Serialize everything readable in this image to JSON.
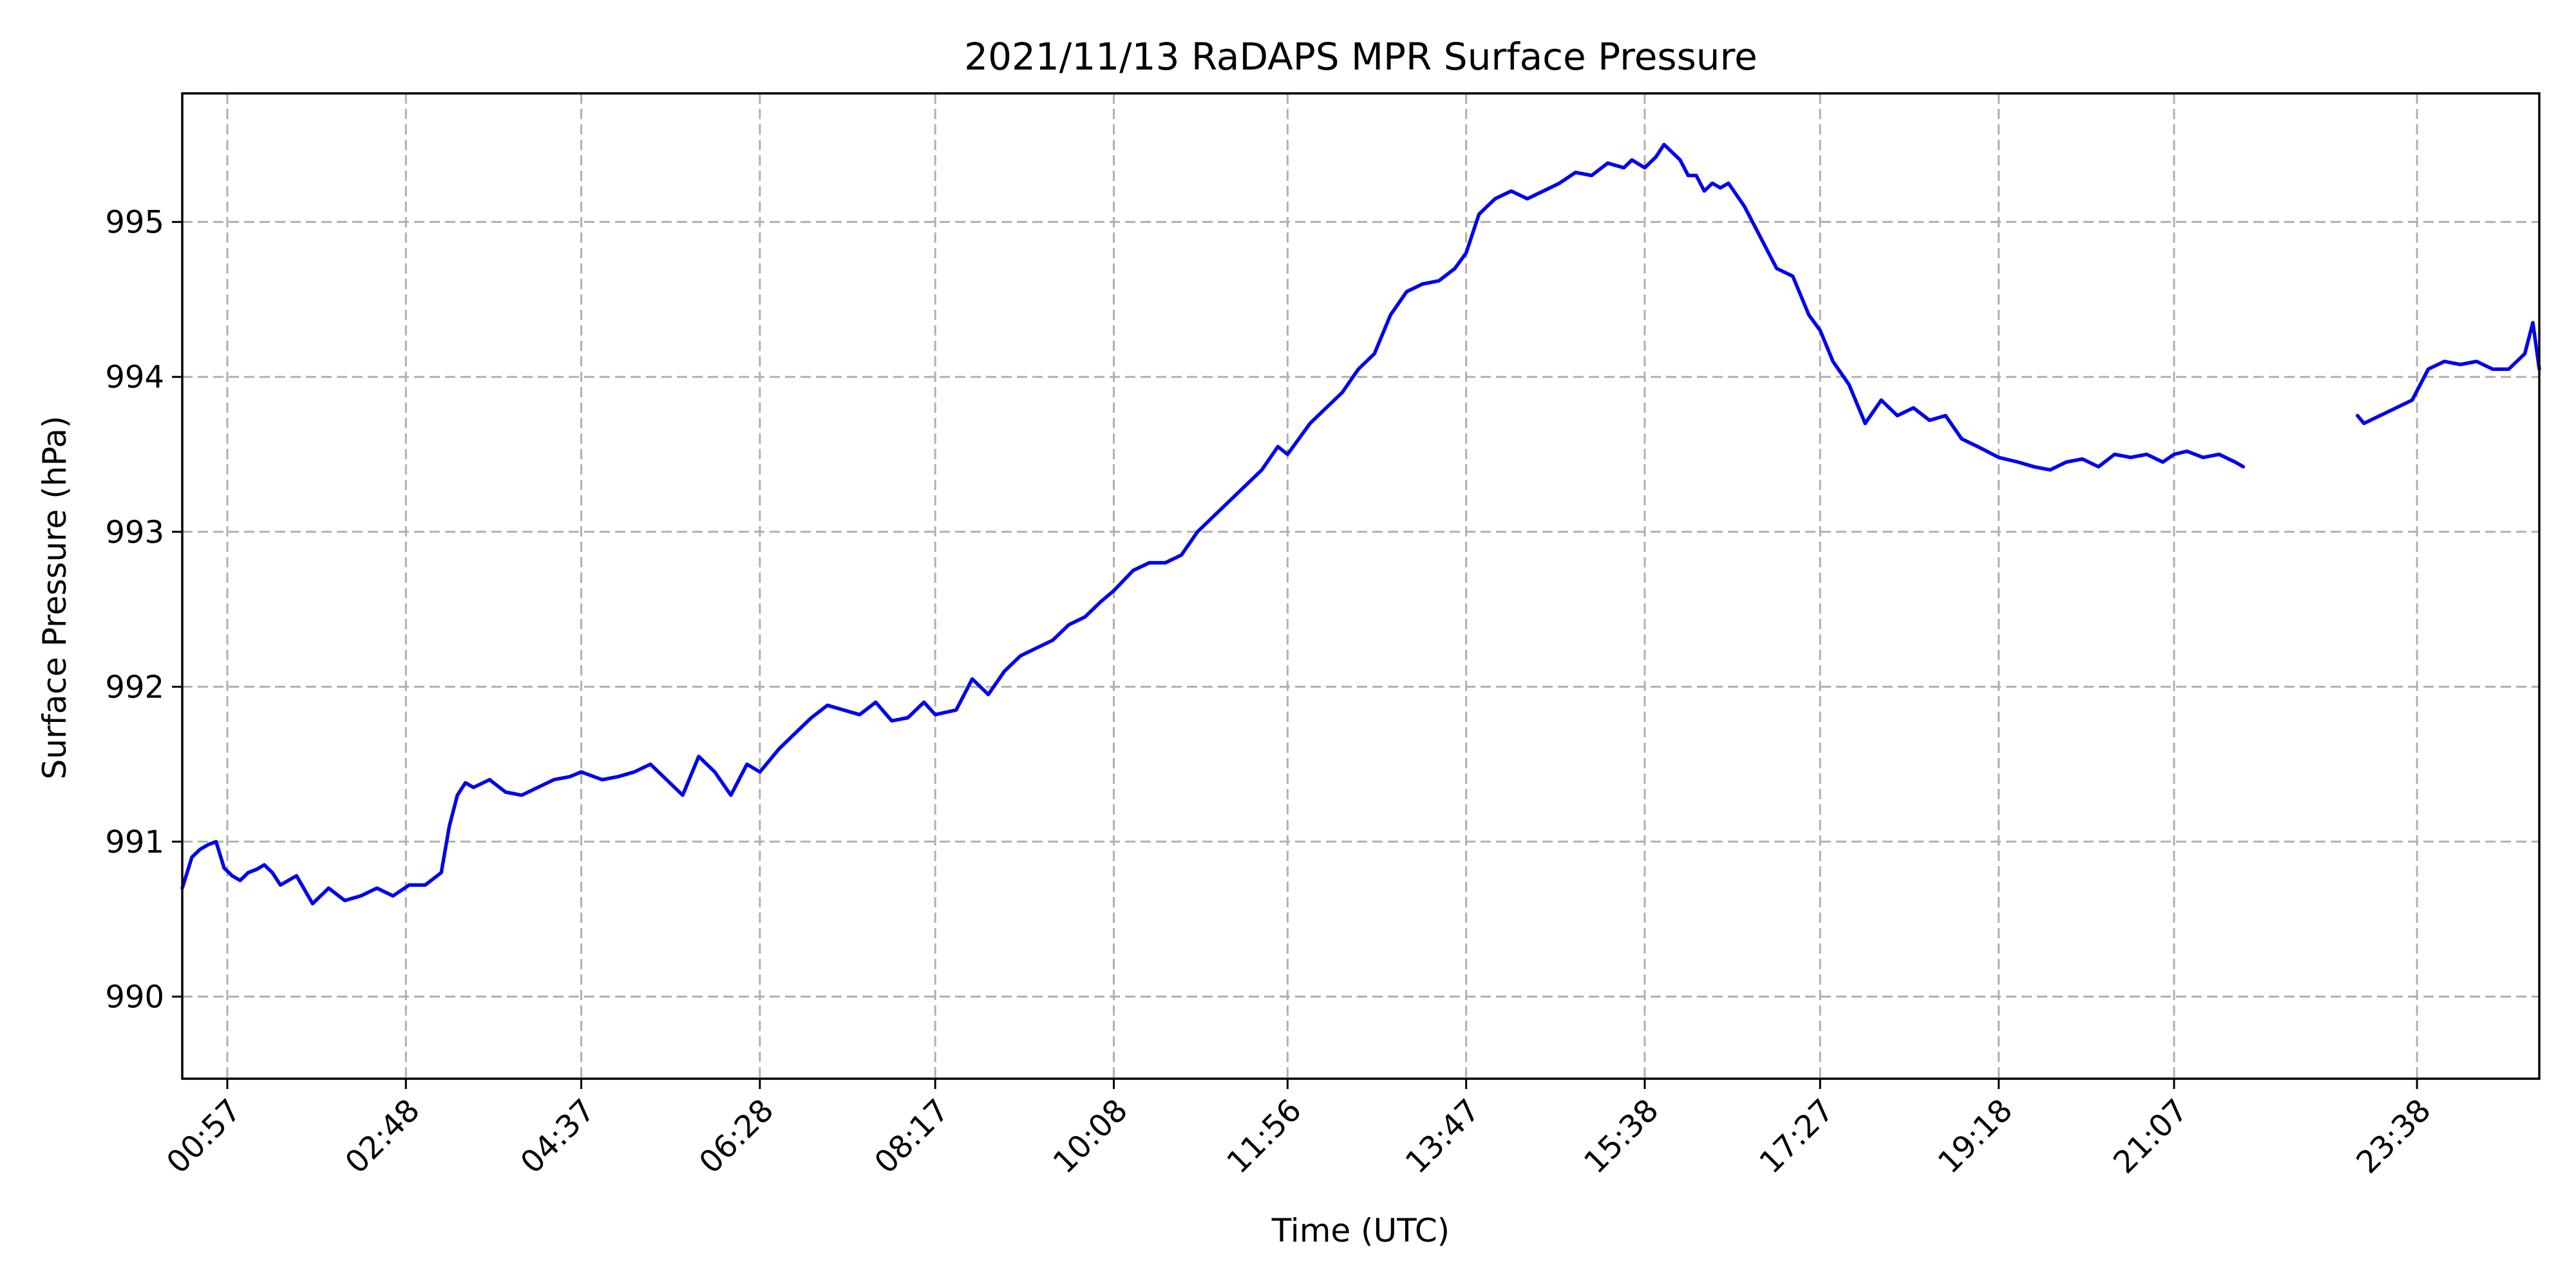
{
  "chart_data": {
    "type": "line",
    "title": "2021/11/13 RaDAPS MPR Surface Pressure",
    "xlabel": "Time (UTC)",
    "ylabel": "Surface Pressure (hPa)",
    "x_unit": "time of day (HH:MM UTC)",
    "xlim": [
      "00:29",
      "24:54"
    ],
    "ylim": [
      989.47,
      995.83
    ],
    "xticks": [
      "00:57",
      "02:48",
      "04:37",
      "06:28",
      "08:17",
      "10:08",
      "11:56",
      "13:47",
      "15:38",
      "17:27",
      "19:18",
      "21:07",
      "23:38"
    ],
    "yticks": [
      990,
      991,
      992,
      993,
      994,
      995
    ],
    "grid": true,
    "colors": {
      "line": "#0000ee",
      "grid": "#b0b0b0",
      "frame": "#000000"
    },
    "series": [
      {
        "color": "#0000ee",
        "segments": [
          {
            "x": [
              "00:29",
              "00:35",
              "00:40",
              "00:45",
              "00:50",
              "00:55",
              "01:00",
              "01:05",
              "01:10",
              "01:15",
              "01:20",
              "01:25",
              "01:30",
              "01:40",
              "01:50",
              "02:00",
              "02:10",
              "02:20",
              "02:30",
              "02:40",
              "02:50",
              "03:00",
              "03:10",
              "03:15",
              "03:20",
              "03:25",
              "03:30",
              "03:40",
              "03:50",
              "04:00",
              "04:10",
              "04:20",
              "04:30",
              "04:37",
              "04:50",
              "05:00",
              "05:10",
              "05:20",
              "05:30",
              "05:40",
              "05:50",
              "06:00",
              "06:10",
              "06:15",
              "06:20",
              "06:28",
              "06:40",
              "06:50",
              "07:00",
              "07:10",
              "07:20",
              "07:30",
              "07:40",
              "07:50",
              "08:00",
              "08:10",
              "08:17",
              "08:30",
              "08:40",
              "08:50",
              "09:00",
              "09:10",
              "09:20",
              "09:30",
              "09:40",
              "09:50",
              "10:00",
              "10:08",
              "10:20",
              "10:30",
              "10:40",
              "10:50",
              "11:00",
              "11:10",
              "11:20",
              "11:30",
              "11:40",
              "11:50",
              "11:56",
              "12:10",
              "12:20",
              "12:30",
              "12:40",
              "12:50",
              "13:00",
              "13:10",
              "13:20",
              "13:30",
              "13:40",
              "13:47",
              "13:55",
              "14:05",
              "14:15",
              "14:25",
              "14:35",
              "14:45",
              "14:55",
              "15:05",
              "15:15",
              "15:25",
              "15:30",
              "15:38",
              "15:45",
              "15:50",
              "15:55",
              "16:00",
              "16:05",
              "16:10",
              "16:15",
              "16:20",
              "16:25",
              "16:30",
              "16:40",
              "16:50",
              "17:00",
              "17:10",
              "17:20",
              "17:27",
              "17:35",
              "17:45",
              "17:55",
              "18:05",
              "18:15",
              "18:25",
              "18:35",
              "18:45",
              "18:55",
              "19:05",
              "19:18",
              "19:30",
              "19:40",
              "19:50",
              "20:00",
              "20:10",
              "20:20",
              "20:30",
              "20:40",
              "20:50",
              "21:00",
              "21:07",
              "21:15",
              "21:25",
              "21:35",
              "21:45",
              "21:50"
            ],
            "y": [
              990.7,
              990.9,
              990.95,
              990.98,
              991.0,
              990.83,
              990.78,
              990.75,
              990.8,
              990.82,
              990.85,
              990.8,
              990.72,
              990.78,
              990.6,
              990.7,
              990.62,
              990.65,
              990.7,
              990.65,
              990.72,
              990.72,
              990.8,
              991.1,
              991.3,
              991.38,
              991.35,
              991.4,
              991.32,
              991.3,
              991.35,
              991.4,
              991.42,
              991.45,
              991.4,
              991.42,
              991.45,
              991.5,
              991.4,
              991.3,
              991.55,
              991.45,
              991.3,
              991.4,
              991.5,
              991.45,
              991.6,
              991.7,
              991.8,
              991.88,
              991.85,
              991.82,
              991.9,
              991.78,
              991.8,
              991.9,
              991.82,
              991.85,
              992.05,
              991.95,
              992.1,
              992.2,
              992.25,
              992.3,
              992.4,
              992.45,
              992.55,
              992.62,
              992.75,
              992.8,
              992.8,
              992.85,
              993.0,
              993.1,
              993.2,
              993.3,
              993.4,
              993.55,
              993.5,
              993.7,
              993.8,
              993.9,
              994.05,
              994.15,
              994.4,
              994.55,
              994.6,
              994.62,
              994.7,
              994.8,
              995.05,
              995.15,
              995.2,
              995.15,
              995.2,
              995.25,
              995.32,
              995.3,
              995.38,
              995.35,
              995.4,
              995.35,
              995.42,
              995.5,
              995.45,
              995.4,
              995.3,
              995.3,
              995.2,
              995.25,
              995.22,
              995.25,
              995.1,
              994.9,
              994.7,
              994.65,
              994.4,
              994.3,
              994.1,
              993.95,
              993.7,
              993.85,
              993.75,
              993.8,
              993.72,
              993.75,
              993.6,
              993.55,
              993.48,
              993.45,
              993.42,
              993.4,
              993.45,
              993.47,
              993.42,
              993.5,
              993.48,
              993.5,
              993.45,
              993.5,
              993.52,
              993.48,
              993.5,
              993.45,
              993.42
            ]
          },
          {
            "x": [
              "23:01",
              "23:05",
              "23:15",
              "23:25",
              "23:35",
              "23:45",
              "23:55",
              "24:05",
              "24:15",
              "24:25",
              "24:35",
              "24:45",
              "24:50",
              "24:54"
            ],
            "y": [
              993.75,
              993.7,
              993.75,
              993.8,
              993.85,
              994.05,
              994.1,
              994.08,
              994.1,
              994.05,
              994.05,
              994.15,
              994.35,
              994.05
            ]
          }
        ]
      }
    ]
  }
}
